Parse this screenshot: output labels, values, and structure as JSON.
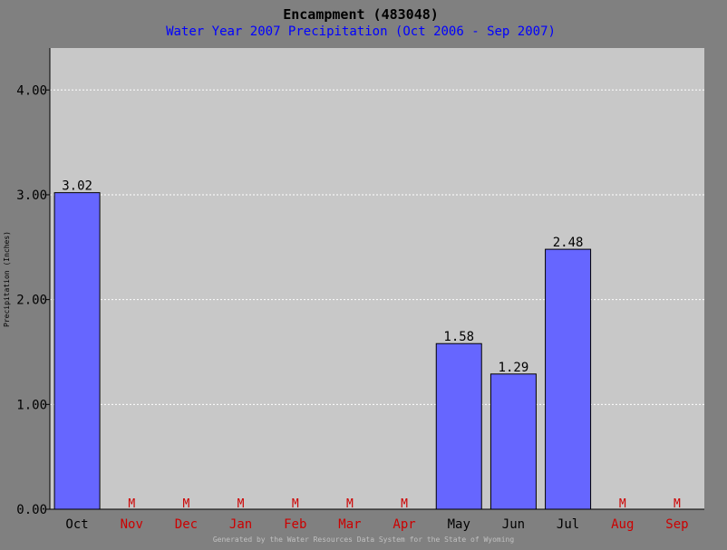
{
  "chart_data": {
    "type": "bar",
    "title": "Encampment (483048)",
    "subtitle": "Water Year 2007 Precipitation (Oct 2006 - Sep 2007)",
    "ylabel": "Precipitation (Inches)",
    "xlabel": "",
    "footer": "Generated by the Water Resources Data System for the State of Wyoming",
    "ylim": [
      0,
      4.4
    ],
    "yticks": [
      "0.00",
      "1.00",
      "2.00",
      "3.00",
      "4.00"
    ],
    "grid": true,
    "legend": "none",
    "categories": [
      "Oct",
      "Nov",
      "Dec",
      "Jan",
      "Feb",
      "Mar",
      "Apr",
      "May",
      "Jun",
      "Jul",
      "Aug",
      "Sep"
    ],
    "values": [
      3.02,
      null,
      null,
      null,
      null,
      null,
      null,
      1.58,
      1.29,
      2.48,
      null,
      null
    ],
    "value_labels": [
      "3.02",
      "M",
      "M",
      "M",
      "M",
      "M",
      "M",
      "1.58",
      "1.29",
      "2.48",
      "M",
      "M"
    ],
    "missing_marker": "M",
    "colors": {
      "background": "#808080",
      "plot_background": "#c8c8c8",
      "bar": "#6666ff",
      "title": "#000000",
      "subtitle": "#0000ff",
      "missing": "#cc0000",
      "gridline": "#ffffff",
      "footer": "#c0c0c0"
    }
  }
}
